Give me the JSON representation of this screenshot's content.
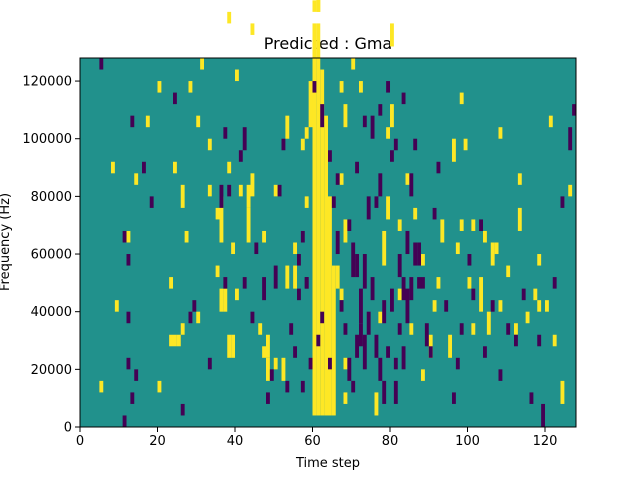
{
  "chart_data": {
    "type": "heatmap",
    "title": "Predicted : Gma",
    "xlabel": "Time step",
    "ylabel": "Frequency (Hz)",
    "xlim": [
      0,
      128
    ],
    "ylim": [
      0,
      128000
    ],
    "xticks": [
      0,
      20,
      40,
      60,
      80,
      100,
      120
    ],
    "yticks": [
      0,
      20000,
      40000,
      60000,
      80000,
      100000,
      120000
    ],
    "xtick_labels": [
      "0",
      "20",
      "40",
      "60",
      "80",
      "100",
      "120"
    ],
    "ytick_labels": [
      "0",
      "20000",
      "40000",
      "60000",
      "80000",
      "100000",
      "120000"
    ],
    "bin_height_hz": 4000,
    "colors": {
      "background": "#21918c",
      "high": "#fde725",
      "low": "#440154"
    },
    "values": {
      "background": 0.5,
      "high": 1,
      "low": 0
    },
    "high_cells": [
      [
        60,
        1,
        35
      ],
      [
        61,
        1,
        35
      ],
      [
        62,
        1,
        31
      ],
      [
        63,
        1,
        27
      ],
      [
        64,
        1,
        20
      ],
      [
        65,
        1,
        14
      ],
      [
        61,
        36,
        39
      ],
      [
        59,
        26,
        30
      ],
      [
        2,
        12,
        12
      ],
      [
        3,
        12,
        12
      ],
      [
        23,
        7,
        8
      ],
      [
        24,
        7,
        8
      ],
      [
        25,
        7,
        8
      ],
      [
        19,
        4,
        4
      ],
      [
        36,
        10,
        12
      ],
      [
        37,
        10,
        12
      ],
      [
        38,
        6,
        8
      ],
      [
        39,
        6,
        8
      ],
      [
        40,
        11,
        12
      ],
      [
        46,
        8,
        9
      ],
      [
        47,
        6,
        7
      ],
      [
        48,
        4,
        6
      ],
      [
        52,
        4,
        6
      ],
      [
        53,
        12,
        14
      ],
      [
        26,
        8,
        9
      ],
      [
        35,
        13,
        14
      ],
      [
        35,
        18,
        19
      ],
      [
        36,
        16,
        20
      ],
      [
        30,
        26,
        27
      ],
      [
        26,
        19,
        21
      ],
      [
        33,
        24,
        25
      ],
      [
        39,
        15,
        16
      ],
      [
        38,
        22,
        23
      ],
      [
        43,
        16,
        19
      ],
      [
        43,
        19,
        21
      ],
      [
        47,
        16,
        17
      ],
      [
        50,
        20,
        21
      ],
      [
        53,
        25,
        27
      ],
      [
        28,
        29,
        30
      ],
      [
        38,
        35,
        36
      ],
      [
        40,
        30,
        31
      ],
      [
        44,
        34,
        35
      ],
      [
        55,
        15,
        16
      ],
      [
        58,
        25,
        26
      ],
      [
        66,
        12,
        14
      ],
      [
        67,
        11,
        12
      ],
      [
        67,
        21,
        22
      ],
      [
        67,
        29,
        30
      ],
      [
        68,
        26,
        28
      ],
      [
        68,
        16,
        18
      ],
      [
        68,
        5,
        6
      ],
      [
        68,
        2,
        3
      ],
      [
        76,
        1,
        3
      ],
      [
        77,
        9,
        10
      ],
      [
        78,
        14,
        17
      ],
      [
        79,
        18,
        20
      ],
      [
        79,
        25,
        26
      ],
      [
        80,
        26,
        28
      ],
      [
        80,
        33,
        35
      ],
      [
        82,
        17,
        18
      ],
      [
        84,
        21,
        22
      ],
      [
        86,
        18,
        19
      ],
      [
        88,
        14,
        15
      ],
      [
        90,
        6,
        8
      ],
      [
        91,
        10,
        11
      ],
      [
        92,
        12,
        13
      ],
      [
        93,
        16,
        18
      ],
      [
        96,
        23,
        25
      ],
      [
        97,
        15,
        16
      ],
      [
        98,
        17,
        18
      ],
      [
        99,
        24,
        25
      ],
      [
        100,
        12,
        13
      ],
      [
        101,
        17,
        18
      ],
      [
        103,
        10,
        13
      ],
      [
        104,
        16,
        17
      ],
      [
        105,
        8,
        10
      ],
      [
        106,
        14,
        16
      ],
      [
        108,
        10,
        11
      ],
      [
        108,
        25,
        26
      ],
      [
        110,
        13,
        14
      ],
      [
        112,
        8,
        9
      ],
      [
        113,
        17,
        19
      ],
      [
        115,
        9,
        10
      ],
      [
        117,
        11,
        12
      ],
      [
        118,
        14,
        15
      ],
      [
        120,
        10,
        11
      ],
      [
        122,
        7,
        8
      ],
      [
        124,
        2,
        4
      ],
      [
        126,
        20,
        21
      ],
      [
        121,
        26,
        27
      ],
      [
        31,
        31,
        32
      ],
      [
        8,
        22,
        23
      ],
      [
        12,
        16,
        17
      ],
      [
        14,
        21,
        22
      ],
      [
        20,
        29,
        30
      ],
      [
        30,
        9,
        10
      ],
      [
        33,
        20,
        21
      ],
      [
        20,
        3,
        4
      ],
      [
        24,
        22,
        23
      ],
      [
        44,
        20,
        22
      ],
      [
        48,
        6,
        8
      ],
      [
        50,
        5,
        6
      ],
      [
        55,
        12,
        14
      ],
      [
        57,
        24,
        25
      ],
      [
        58,
        19,
        20
      ],
      [
        60,
        36,
        37
      ],
      [
        61,
        36,
        38
      ],
      [
        70,
        31,
        32
      ],
      [
        72,
        29,
        30
      ],
      [
        82,
        11,
        12
      ],
      [
        85,
        8,
        9
      ],
      [
        88,
        4,
        5
      ],
      [
        95,
        6,
        8
      ],
      [
        98,
        28,
        29
      ],
      [
        101,
        8,
        9
      ],
      [
        107,
        15,
        16
      ],
      [
        113,
        21,
        22
      ],
      [
        118,
        10,
        11
      ],
      [
        5,
        3,
        4
      ],
      [
        9,
        10,
        11
      ],
      [
        17,
        26,
        27
      ],
      [
        23,
        12,
        13
      ],
      [
        27,
        16,
        17
      ],
      [
        41,
        20,
        21
      ]
    ],
    "low_cells": [
      [
        5,
        31,
        32
      ],
      [
        11,
        0,
        1
      ],
      [
        12,
        5,
        6
      ],
      [
        13,
        2,
        3
      ],
      [
        14,
        4,
        5
      ],
      [
        11,
        16,
        17
      ],
      [
        12,
        9,
        10
      ],
      [
        12,
        14,
        15
      ],
      [
        13,
        26,
        27
      ],
      [
        16,
        22,
        23
      ],
      [
        18,
        19,
        20
      ],
      [
        24,
        28,
        29
      ],
      [
        26,
        1,
        2
      ],
      [
        28,
        9,
        10
      ],
      [
        33,
        5,
        6
      ],
      [
        36,
        19,
        21
      ],
      [
        37,
        12,
        13
      ],
      [
        37,
        25,
        26
      ],
      [
        42,
        12,
        13
      ],
      [
        42,
        24,
        26
      ],
      [
        44,
        9,
        10
      ],
      [
        45,
        15,
        16
      ],
      [
        47,
        11,
        13
      ],
      [
        48,
        2,
        3
      ],
      [
        49,
        4,
        5
      ],
      [
        50,
        12,
        14
      ],
      [
        51,
        20,
        21
      ],
      [
        52,
        24,
        25
      ],
      [
        53,
        3,
        4
      ],
      [
        54,
        8,
        9
      ],
      [
        55,
        6,
        7
      ],
      [
        56,
        11,
        12
      ],
      [
        57,
        3,
        4
      ],
      [
        58,
        12,
        13
      ],
      [
        59,
        5,
        6
      ],
      [
        60,
        29,
        30
      ],
      [
        56,
        14,
        15
      ],
      [
        57,
        16,
        17
      ],
      [
        61,
        7,
        8
      ],
      [
        62,
        26,
        28
      ],
      [
        64,
        23,
        24
      ],
      [
        65,
        19,
        20
      ],
      [
        66,
        15,
        17
      ],
      [
        67,
        10,
        11
      ],
      [
        68,
        8,
        9
      ],
      [
        69,
        4,
        6
      ],
      [
        70,
        3,
        4
      ],
      [
        71,
        6,
        8
      ],
      [
        72,
        9,
        12
      ],
      [
        73,
        12,
        15
      ],
      [
        74,
        18,
        20
      ],
      [
        75,
        25,
        27
      ],
      [
        76,
        19,
        20
      ],
      [
        77,
        20,
        22
      ],
      [
        78,
        2,
        4
      ],
      [
        79,
        6,
        7
      ],
      [
        80,
        23,
        24
      ],
      [
        81,
        5,
        6
      ],
      [
        82,
        8,
        9
      ],
      [
        83,
        11,
        13
      ],
      [
        84,
        15,
        17
      ],
      [
        85,
        20,
        22
      ],
      [
        86,
        24,
        25
      ],
      [
        87,
        14,
        16
      ],
      [
        88,
        12,
        13
      ],
      [
        89,
        7,
        9
      ],
      [
        90,
        6,
        7
      ],
      [
        91,
        18,
        19
      ],
      [
        92,
        22,
        23
      ],
      [
        94,
        10,
        11
      ],
      [
        96,
        2,
        3
      ],
      [
        97,
        5,
        6
      ],
      [
        98,
        8,
        9
      ],
      [
        100,
        14,
        15
      ],
      [
        101,
        11,
        12
      ],
      [
        103,
        17,
        18
      ],
      [
        104,
        6,
        7
      ],
      [
        106,
        10,
        11
      ],
      [
        108,
        4,
        5
      ],
      [
        110,
        8,
        9
      ],
      [
        112,
        7,
        8
      ],
      [
        114,
        11,
        12
      ],
      [
        116,
        2,
        3
      ],
      [
        118,
        7,
        8
      ],
      [
        119,
        0,
        2
      ],
      [
        122,
        12,
        13
      ],
      [
        124,
        19,
        20
      ],
      [
        126,
        24,
        26
      ],
      [
        127,
        27,
        28
      ],
      [
        70,
        13,
        16
      ],
      [
        71,
        13,
        15
      ],
      [
        72,
        7,
        9
      ],
      [
        73,
        5,
        8
      ],
      [
        74,
        8,
        10
      ],
      [
        75,
        11,
        13
      ],
      [
        76,
        6,
        8
      ],
      [
        77,
        4,
        6
      ],
      [
        78,
        9,
        11
      ],
      [
        80,
        10,
        12
      ],
      [
        81,
        2,
        4
      ],
      [
        82,
        13,
        15
      ],
      [
        83,
        5,
        7
      ],
      [
        84,
        9,
        12
      ],
      [
        85,
        11,
        13
      ],
      [
        86,
        14,
        16
      ],
      [
        29,
        10,
        11
      ],
      [
        38,
        20,
        21
      ],
      [
        41,
        23,
        24
      ],
      [
        58,
        12,
        13
      ],
      [
        62,
        9,
        10
      ],
      [
        64,
        5,
        6
      ],
      [
        66,
        21,
        22
      ],
      [
        69,
        17,
        18
      ],
      [
        71,
        22,
        23
      ],
      [
        73,
        26,
        27
      ],
      [
        77,
        27,
        28
      ],
      [
        79,
        29,
        30
      ],
      [
        81,
        24,
        25
      ],
      [
        83,
        28,
        29
      ],
      [
        87,
        12,
        13
      ]
    ]
  }
}
